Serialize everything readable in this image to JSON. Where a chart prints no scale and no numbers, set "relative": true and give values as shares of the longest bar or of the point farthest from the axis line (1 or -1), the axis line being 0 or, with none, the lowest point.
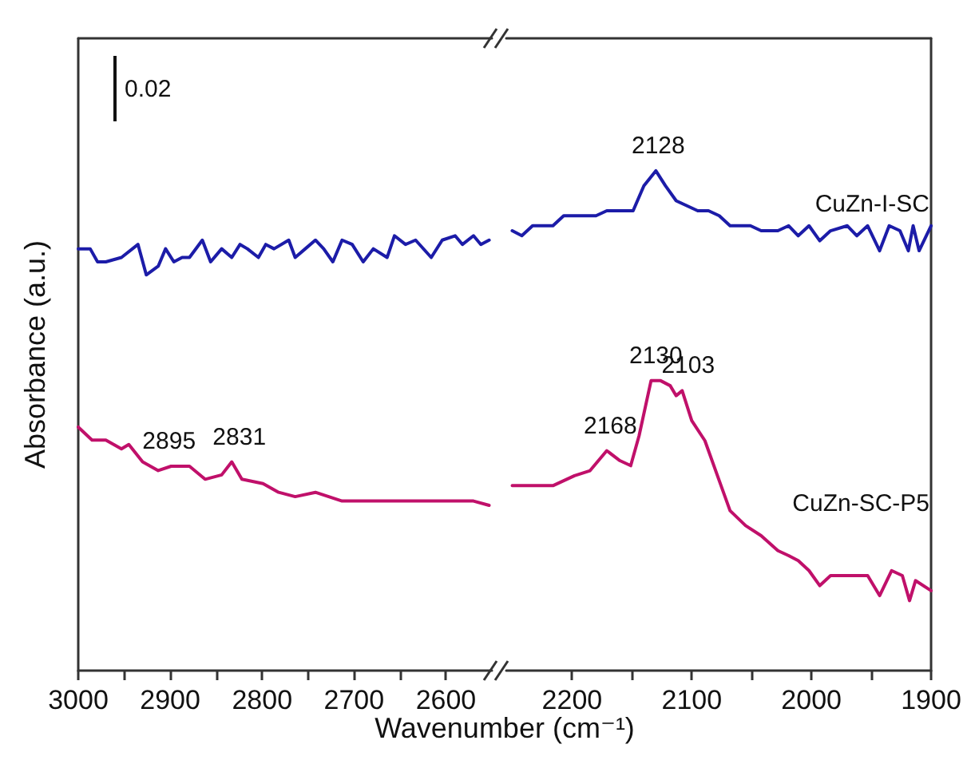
{
  "chart_data": [
    {
      "type": "line",
      "relative": true,
      "tick_labels": "x",
      "xlabel": "Wavenumber (cm⁻¹)",
      "ylabel": "Absorbance (a.u.)",
      "xlim": [
        3000,
        2550
      ],
      "xticks": [
        3000,
        {
          "value": 2950,
          "label": null
        },
        2900,
        {
          "value": 2850,
          "label": null
        },
        2800,
        {
          "value": 2750,
          "label": null
        },
        2700,
        {
          "value": 2650,
          "label": null
        },
        2600
      ],
      "series": [
        {
          "color": "#1c1ca8",
          "x": [
            3000,
            2987,
            2979,
            2970,
            2953,
            2935,
            2926,
            2913,
            2905,
            2896,
            2887,
            2879,
            2865,
            2856,
            2844,
            2833,
            2824,
            2816,
            2804,
            2796,
            2787,
            2771,
            2764,
            2753,
            2742,
            2733,
            2723,
            2713,
            2702,
            2690,
            2679,
            2664,
            2656,
            2644,
            2633,
            2616,
            2604,
            2590,
            2582,
            2570,
            2562,
            2553
          ],
          "values": [
            0.97,
            0.97,
            0.94,
            0.94,
            0.95,
            0.98,
            0.91,
            0.93,
            0.97,
            0.94,
            0.95,
            0.95,
            0.99,
            0.94,
            0.97,
            0.95,
            0.98,
            0.97,
            0.95,
            0.98,
            0.97,
            0.99,
            0.95,
            0.97,
            0.99,
            0.97,
            0.94,
            0.99,
            0.98,
            0.94,
            0.97,
            0.95,
            1.0,
            0.98,
            0.99,
            0.95,
            0.99,
            1.0,
            0.98,
            1.0,
            0.98,
            0.99
          ]
        },
        {
          "color": "#c0106a",
          "x": [
            3000,
            2985,
            2970,
            2953,
            2945,
            2930,
            2913,
            2899,
            2879,
            2862,
            2844,
            2833,
            2822,
            2799,
            2782,
            2764,
            2742,
            2713,
            2684,
            2656,
            2627,
            2599,
            2570,
            2553
          ],
          "values": [
            0.56,
            0.53,
            0.53,
            0.51,
            0.52,
            0.48,
            0.46,
            0.47,
            0.47,
            0.44,
            0.45,
            0.48,
            0.44,
            0.43,
            0.41,
            0.4,
            0.41,
            0.39,
            0.39,
            0.39,
            0.39,
            0.39,
            0.39,
            0.38
          ]
        }
      ],
      "annotations": [
        "0.02",
        {
          "text": "2895",
          "x": 2895,
          "y": 0.47
        },
        {
          "text": "2831",
          "x": 2831,
          "y": 0.48
        }
      ]
    },
    {
      "type": "line",
      "relative": true,
      "tick_labels": "x",
      "xlim": [
        2255,
        1900
      ],
      "xticks": [
        2200,
        {
          "value": 2150,
          "label": null
        },
        2100,
        {
          "value": 2050,
          "label": null
        },
        2000,
        {
          "value": 1950,
          "label": null
        },
        1900
      ],
      "series": [
        {
          "name": "CuZn-I-SC",
          "color": "#1c1ca8",
          "x": [
            2250,
            2242,
            2233,
            2225,
            2216,
            2207,
            2198,
            2189,
            2180,
            2171,
            2162,
            2149,
            2140,
            2130,
            2122,
            2113,
            2104,
            2095,
            2086,
            2077,
            2068,
            2060,
            2051,
            2042,
            2028,
            2019,
            2011,
            2002,
            1993,
            1984,
            1970,
            1962,
            1953,
            1943,
            1935,
            1926,
            1919,
            1915,
            1910,
            1900
          ],
          "values": [
            0.88,
            0.87,
            0.89,
            0.89,
            0.89,
            0.91,
            0.91,
            0.91,
            0.91,
            0.92,
            0.92,
            0.92,
            0.97,
            1.0,
            0.97,
            0.94,
            0.93,
            0.92,
            0.92,
            0.91,
            0.89,
            0.89,
            0.89,
            0.88,
            0.88,
            0.89,
            0.87,
            0.89,
            0.86,
            0.88,
            0.89,
            0.87,
            0.89,
            0.84,
            0.89,
            0.88,
            0.84,
            0.89,
            0.84,
            0.89
          ]
        },
        {
          "name": "CuZn-SC-P5",
          "color": "#c0106a",
          "x": [
            2250,
            2233,
            2216,
            2198,
            2185,
            2171,
            2160,
            2151,
            2144,
            2134,
            2126,
            2118,
            2113,
            2108,
            2100,
            2089,
            2077,
            2068,
            2055,
            2042,
            2028,
            2019,
            2011,
            2002,
            1993,
            1984,
            1970,
            1962,
            1953,
            1943,
            1933,
            1924,
            1918,
            1913,
            1900
          ],
          "values": [
            0.37,
            0.37,
            0.37,
            0.39,
            0.4,
            0.44,
            0.42,
            0.41,
            0.47,
            0.58,
            0.58,
            0.57,
            0.55,
            0.56,
            0.5,
            0.46,
            0.38,
            0.32,
            0.29,
            0.27,
            0.24,
            0.23,
            0.22,
            0.2,
            0.17,
            0.19,
            0.19,
            0.19,
            0.19,
            0.15,
            0.2,
            0.19,
            0.14,
            0.18,
            0.16
          ]
        }
      ],
      "annotations": [
        {
          "text": "2128",
          "x": 2128,
          "y": 1.0
        },
        {
          "text": "2168",
          "x": 2168,
          "y": 0.44
        },
        {
          "text": "2130",
          "x": 2130,
          "y": 0.58
        },
        {
          "text": "2103",
          "x": 2103,
          "y": 0.56
        }
      ]
    }
  ]
}
